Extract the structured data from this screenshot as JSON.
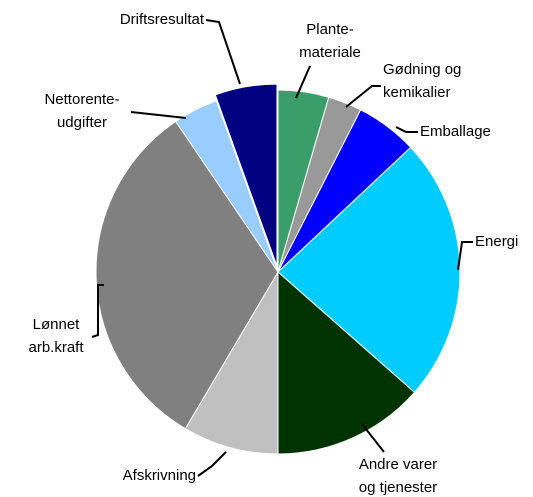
{
  "chart_data": {
    "type": "pie",
    "categories": [
      "Plante-\nmateriale",
      "Gødning og\nkemikalier",
      "Emballage",
      "Energi",
      "Andre varer\nog tjenester",
      "Afskrivning",
      "Lønnet\narb.kraft",
      "Nettorente-\nudgifter",
      "Driftsresultat"
    ],
    "values": [
      4.5,
      3,
      5.5,
      23.5,
      13.5,
      8.5,
      32,
      4,
      5.5
    ],
    "colors": [
      "#3a9e6a",
      "#999999",
      "#0000ff",
      "#00ccff",
      "#003300",
      "#c0c0c0",
      "#808080",
      "#99ccff",
      "#000080"
    ]
  }
}
